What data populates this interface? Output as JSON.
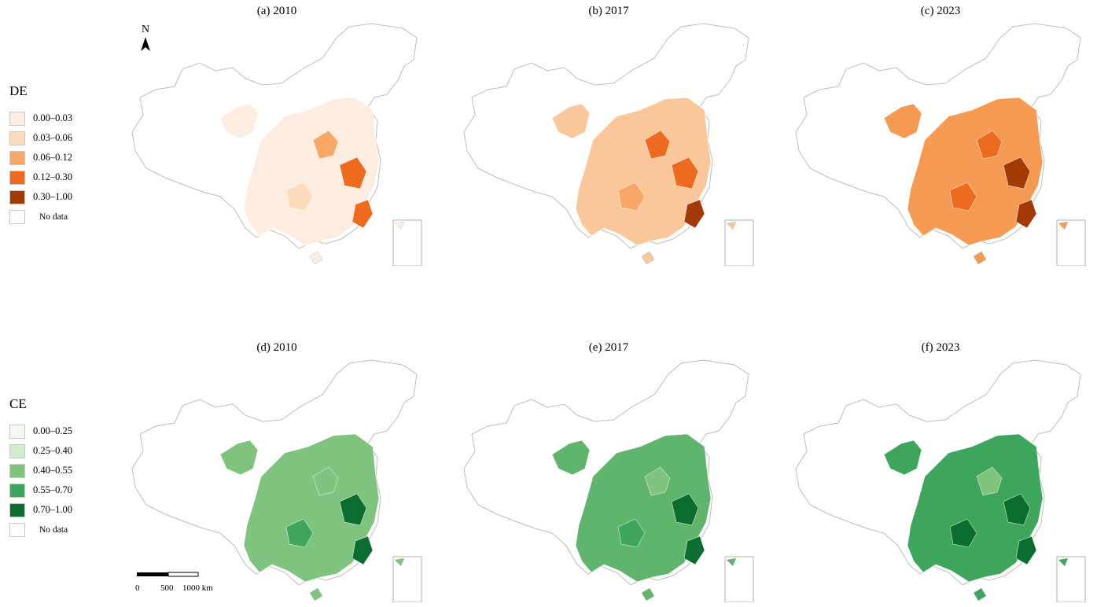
{
  "legends": [
    {
      "title": "DE",
      "items": [
        {
          "label": "0.00–0.03",
          "color": "#fdece0"
        },
        {
          "label": "0.03–0.06",
          "color": "#fddabb"
        },
        {
          "label": "0.06–0.12",
          "color": "#f9a767"
        },
        {
          "label": "0.12–0.30",
          "color": "#ee6a1e"
        },
        {
          "label": "0.30–1.00",
          "color": "#a33a06"
        }
      ],
      "nodata_label": "No data"
    },
    {
      "title": "CE",
      "items": [
        {
          "label": "0.00–0.25",
          "color": "#f3f9f0"
        },
        {
          "label": "0.25–0.40",
          "color": "#d3ecca"
        },
        {
          "label": "0.40–0.55",
          "color": "#7fc47e"
        },
        {
          "label": "0.55–0.70",
          "color": "#3ea55d"
        },
        {
          "label": "0.70–1.00",
          "color": "#0b6d2f"
        }
      ],
      "nodata_label": "No data"
    }
  ],
  "panels": [
    {
      "title": "(a) 2010",
      "fill": "#fdece0",
      "hot": [
        "#f9a767",
        "#ee6a1e",
        "#fddabb",
        "#ee6a1e"
      ]
    },
    {
      "title": "(b) 2017",
      "fill": "#f9c79a",
      "hot": [
        "#ee6a1e",
        "#ee6a1e",
        "#f9a767",
        "#a33a06"
      ]
    },
    {
      "title": "(c) 2023",
      "fill": "#f59a52",
      "hot": [
        "#ee6a1e",
        "#a33a06",
        "#ee6a1e",
        "#a33a06"
      ]
    },
    {
      "title": "(d) 2010",
      "fill": "#7fc47e",
      "hot": [
        "#7fc47e",
        "#0b6d2f",
        "#3ea55d",
        "#0b6d2f"
      ]
    },
    {
      "title": "(e) 2017",
      "fill": "#5fb56c",
      "hot": [
        "#7fc47e",
        "#0b6d2f",
        "#3ea55d",
        "#0b6d2f"
      ]
    },
    {
      "title": "(f) 2023",
      "fill": "#3ea55d",
      "hot": [
        "#7fc47e",
        "#0b6d2f",
        "#0b6d2f",
        "#0b6d2f"
      ]
    }
  ],
  "north_label": "N",
  "scale": {
    "labels": [
      "0",
      "500",
      "1000 km"
    ]
  }
}
